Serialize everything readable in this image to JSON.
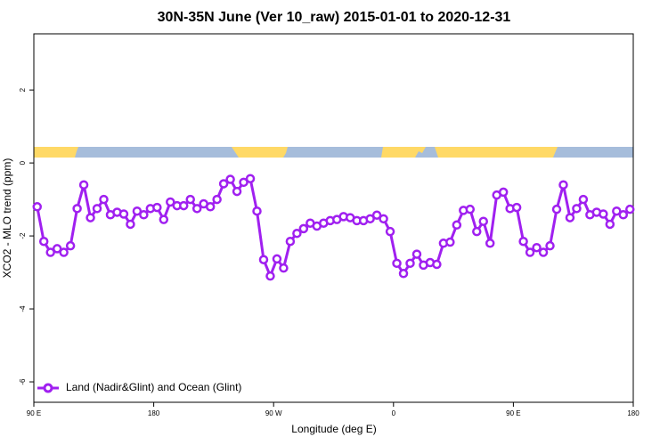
{
  "chart_data": {
    "type": "line",
    "title": "30N-35N June (Ver 10_raw)   2015-01-01 to 2020-12-31",
    "x_label": "Longitude (deg E)",
    "y_label": "XCO2 - MLO trend (ppm)",
    "xlim": [
      90,
      540
    ],
    "ylim": [
      -6.56,
      3.54
    ],
    "xticks": [
      {
        "value": 90,
        "label": "90 E"
      },
      180,
      {
        "value": 270,
        "label": "90 W"
      },
      {
        "value": 360,
        "label": "0"
      },
      {
        "value": 450,
        "label": "90 E"
      },
      {
        "value": 540,
        "label": "180"
      }
    ],
    "yticks": [
      2,
      0,
      -2,
      -4,
      -6
    ],
    "legend": "bottom-left",
    "x": [
      92.5,
      97.5,
      102.5,
      107.5,
      112.5,
      117.5,
      122.5,
      127.5,
      132.5,
      137.5,
      142.5,
      147.5,
      152.5,
      157.5,
      162.5,
      167.5,
      172.5,
      177.5,
      182.5,
      187.5,
      192.5,
      197.5,
      202.5,
      207.5,
      212.5,
      217.5,
      222.5,
      227.5,
      232.5,
      237.5,
      242.5,
      247.5,
      252.5,
      257.5,
      262.5,
      267.5,
      272.5,
      277.5,
      282.5,
      287.5,
      292.5,
      297.5,
      302.5,
      307.5,
      312.5,
      317.5,
      322.5,
      327.5,
      332.5,
      337.5,
      342.5,
      347.5,
      352.5,
      357.5,
      362.5,
      367.5,
      372.5,
      377.5,
      382.5,
      387.5,
      392.5,
      397.5,
      402.5,
      407.5,
      412.5,
      417.5,
      422.5,
      427.5,
      432.5,
      437.5,
      442.5,
      447.5,
      452.5,
      457.5,
      462.5,
      467.5,
      472.5,
      477.5,
      482.5,
      487.5,
      492.5,
      497.5,
      502.5,
      507.5,
      512.5,
      517.5,
      522.5,
      527.5,
      532.5,
      537.5
    ],
    "series": [
      {
        "name": "Land (Nadir&Glint) and Ocean (Glint)",
        "color": "#a020f0",
        "values": [
          -1.2,
          -2.15,
          -2.45,
          -2.35,
          -2.45,
          -2.27,
          -1.25,
          -0.6,
          -1.5,
          -1.25,
          -1.0,
          -1.42,
          -1.35,
          -1.4,
          -1.68,
          -1.32,
          -1.42,
          -1.25,
          -1.22,
          -1.55,
          -1.07,
          -1.17,
          -1.17,
          -1.0,
          -1.25,
          -1.12,
          -1.2,
          -1.0,
          -0.57,
          -0.45,
          -0.78,
          -0.53,
          -0.43,
          -1.32,
          -2.65,
          -3.1,
          -2.63,
          -2.88,
          -2.15,
          -1.93,
          -1.8,
          -1.65,
          -1.73,
          -1.65,
          -1.58,
          -1.55,
          -1.47,
          -1.5,
          -1.58,
          -1.58,
          -1.53,
          -1.43,
          -1.53,
          -1.88,
          -2.75,
          -3.03,
          -2.75,
          -2.5,
          -2.8,
          -2.73,
          -2.78,
          -2.2,
          -2.17,
          -1.7,
          -1.3,
          -1.27,
          -1.88,
          -1.6,
          -2.2,
          -0.88,
          -0.8,
          -1.25,
          -1.22,
          -2.15,
          -2.45,
          -2.32,
          -2.45,
          -2.27,
          -1.27,
          -0.6,
          -1.5,
          -1.25,
          -1.0,
          -1.42,
          -1.35,
          -1.4,
          -1.68,
          -1.32,
          -1.42,
          -1.27
        ]
      }
    ]
  }
}
